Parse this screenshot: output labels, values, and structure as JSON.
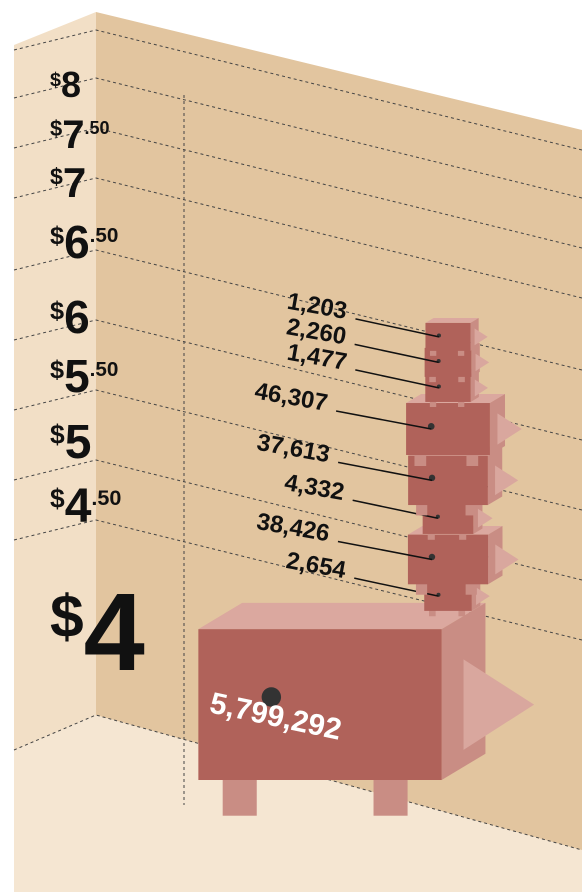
{
  "chart_data": {
    "type": "pictogram",
    "wage_labels": [
      "$8",
      "$7.50",
      "$7",
      "$6.50",
      "$6",
      "$5.50",
      "$5",
      "$4.50",
      "$4"
    ],
    "values": [
      1203,
      2260,
      1477,
      46307,
      37613,
      4332,
      38426,
      2654,
      5799292
    ],
    "value_labels": [
      "1,203",
      "2,260",
      "1,477",
      "46,307",
      "37,613",
      "4,332",
      "38,426",
      "2,654",
      "5,799,292"
    ],
    "color": "#b0625a"
  }
}
